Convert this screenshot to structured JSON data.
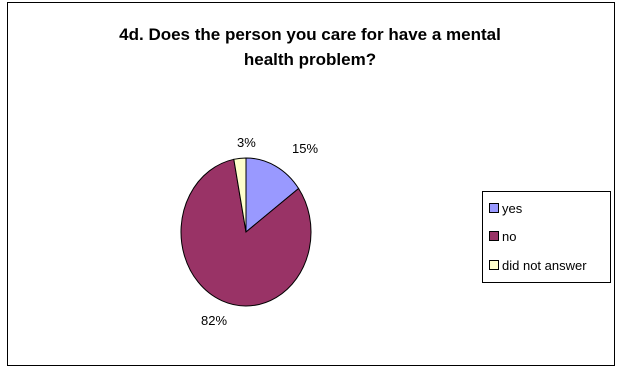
{
  "chart_data": {
    "type": "pie",
    "title_line1": "4d. Does the person you care for have a mental",
    "title_line2": "health problem?",
    "categories": [
      "yes",
      "no",
      "did not answer"
    ],
    "values": [
      15,
      82,
      3
    ],
    "value_labels": [
      "15%",
      "82%",
      "3%"
    ],
    "colors": [
      "#9999ff",
      "#993366",
      "#ffffcc"
    ],
    "legend_position": "right"
  }
}
